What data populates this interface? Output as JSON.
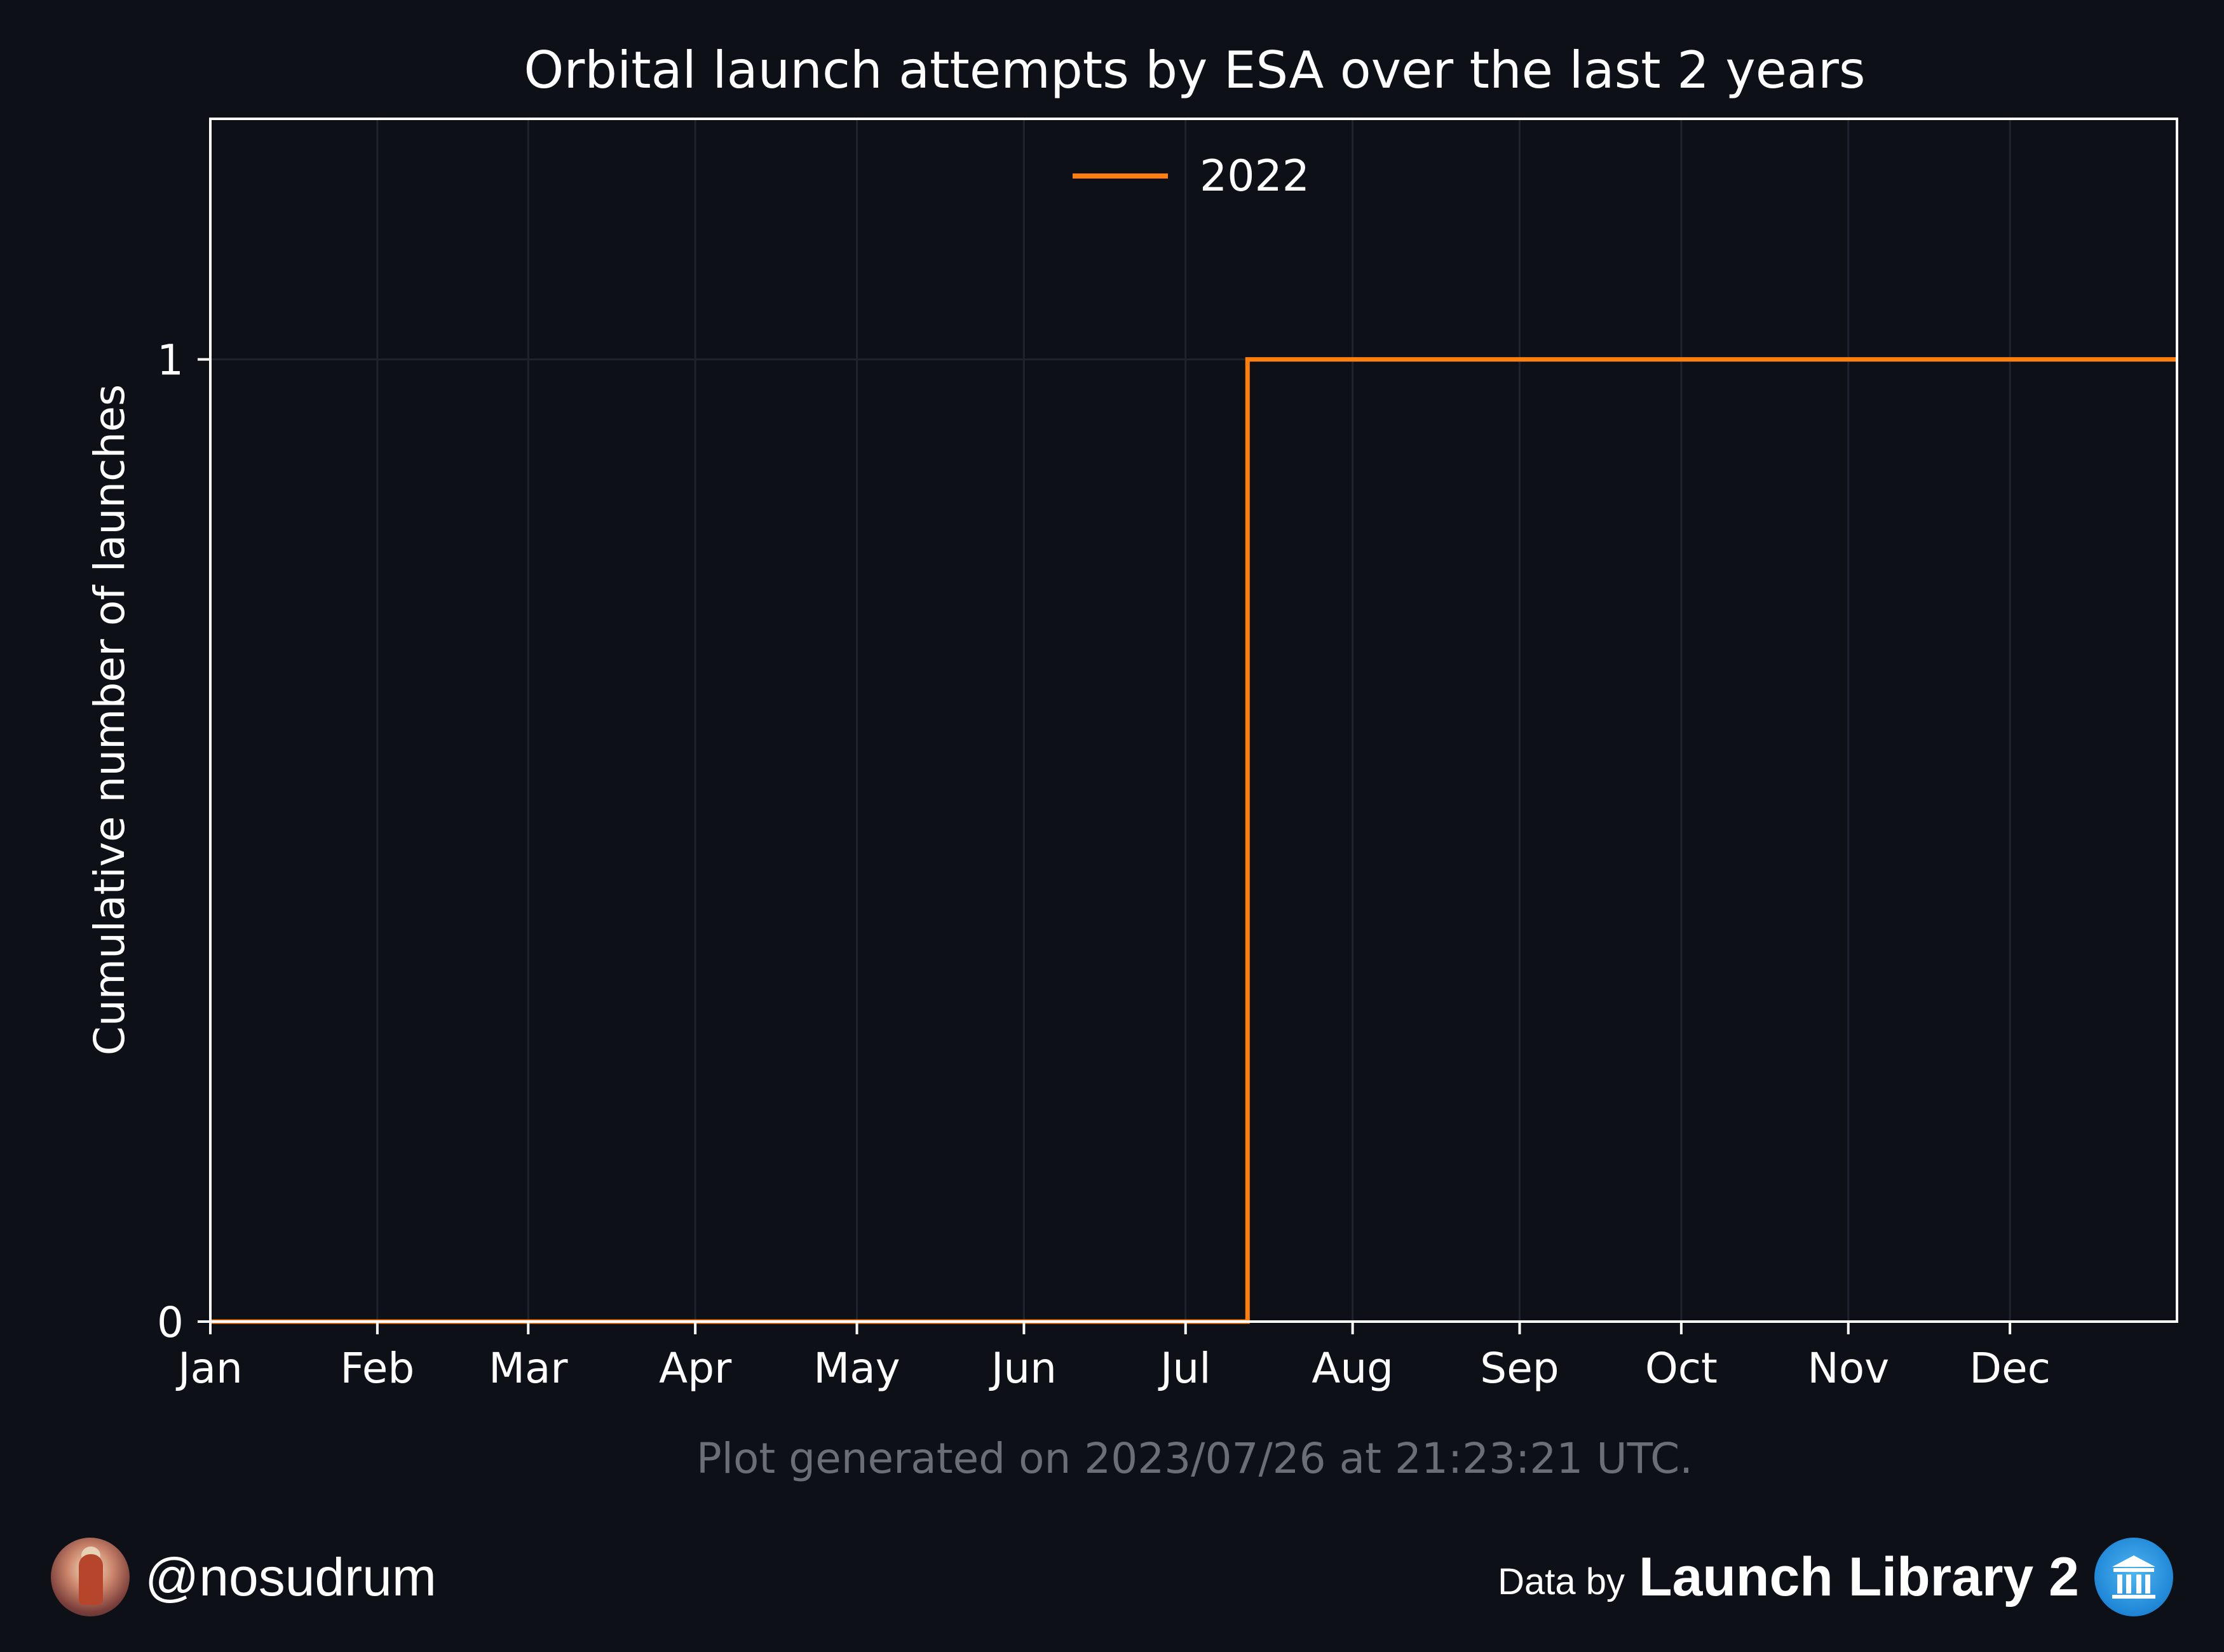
{
  "chart_data": {
    "type": "line",
    "title": "Orbital launch attempts by ESA over the last 2 years",
    "xlabel": "",
    "ylabel": "Cumulative number of launches",
    "x_ticks": [
      "Jan",
      "Feb",
      "Mar",
      "Apr",
      "May",
      "Jun",
      "Jul",
      "Aug",
      "Sep",
      "Oct",
      "Nov",
      "Dec"
    ],
    "x_tick_days": [
      0,
      31,
      59,
      90,
      120,
      151,
      181,
      212,
      243,
      273,
      304,
      334
    ],
    "xlim_days": [
      0,
      365
    ],
    "y_ticks": [
      0,
      1
    ],
    "ylim": [
      0,
      1.25
    ],
    "grid": true,
    "legend_position": "upper center",
    "series": [
      {
        "name": "2022",
        "color": "#ff7f0e",
        "step": "post",
        "x_days": [
          0,
          192.5,
          365
        ],
        "y": [
          0,
          1,
          1
        ]
      }
    ]
  },
  "annotation": "Plot generated on 2023/07/26 at 21:23:21 UTC.",
  "footer": {
    "author_handle": "@nosudrum",
    "author_avatar_icon": "astronaut-avatar-icon",
    "credit_prefix": "Data by",
    "credit_name": "Launch Library 2",
    "credit_logo_icon": "launch-library-logo-icon"
  },
  "colors": {
    "background": "#0d1017",
    "text": "#ffffff",
    "grid": "#1f232c",
    "annotation": "#6b6e74"
  }
}
